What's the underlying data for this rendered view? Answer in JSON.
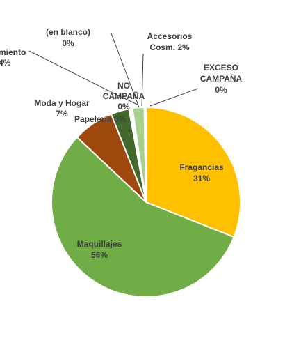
{
  "chart_data": {
    "type": "pie",
    "title": "",
    "categories": [
      "Fragancias",
      "Maquillajes",
      "Moda y Hogar",
      "Tratamiento",
      "(en blanco)",
      "NO CAMPAÑA",
      "Papelería",
      "Accesorios Cosm.",
      "EXCESO CAMPAÑA"
    ],
    "values": [
      31,
      56,
      7,
      4,
      0,
      0,
      0,
      2,
      0
    ],
    "colors": [
      "#FFC000",
      "#70AD47",
      "#9E480E",
      "#43682B",
      "#7F7F7F",
      "#2E4C1C",
      "#C55A11",
      "#A9D18E",
      "#ED7D31"
    ],
    "slices": [
      {
        "name": "fragancias",
        "label_lines": [
          "Fragancias",
          "31%"
        ],
        "value": 31,
        "color": "#FFC000"
      },
      {
        "name": "maquillajes",
        "label_lines": [
          "Maquillajes",
          "56%"
        ],
        "value": 56,
        "color": "#70AD47"
      },
      {
        "name": "moda-y-hogar",
        "label_lines": [
          "Moda y Hogar",
          "7%"
        ],
        "value": 7,
        "color": "#9E480E"
      },
      {
        "name": "tratamiento",
        "label_lines": [
          "miento",
          "4%"
        ],
        "value": 4,
        "color": "#43682B"
      },
      {
        "name": "en-blanco",
        "label_lines": [
          "(en blanco)",
          "0%"
        ],
        "value": 0,
        "color": "#7F7F7F"
      },
      {
        "name": "no-campana",
        "label_lines": [
          "NO",
          "CAMPAÑA",
          "0%"
        ],
        "value": 0,
        "color": "#2E4C1C"
      },
      {
        "name": "papeleria",
        "label_lines": [
          "Papelería 0%"
        ],
        "value": 0,
        "color": "#C55A11"
      },
      {
        "name": "accesorios-cosm",
        "label_lines": [
          "Accesorios",
          "Cosm. 2%"
        ],
        "value": 2,
        "color": "#A9D18E"
      },
      {
        "name": "exceso-campana",
        "label_lines": [
          "EXCESO",
          "CAMPAÑA",
          "0%"
        ],
        "value": 0,
        "color": "#ED7D31"
      }
    ],
    "legend": "none"
  }
}
